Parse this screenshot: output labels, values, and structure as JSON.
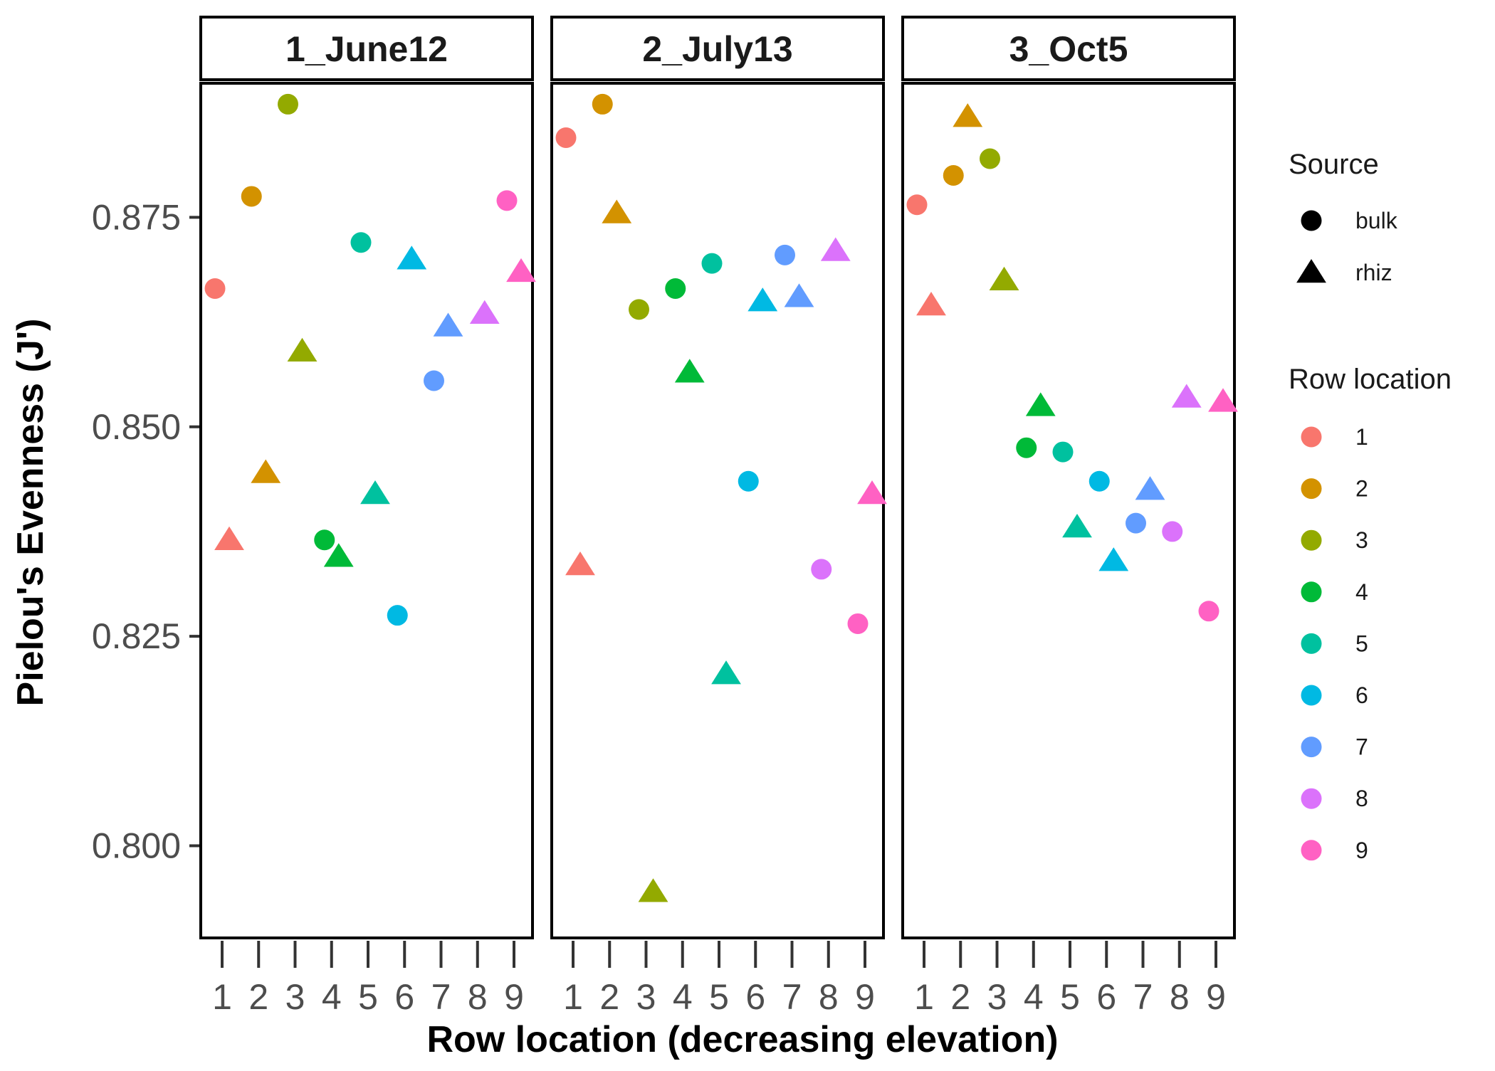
{
  "chart_data": {
    "type": "scatter",
    "xlabel": "Row location (decreasing elevation)",
    "ylabel": "Pielou's Evenness (J')",
    "ylim": [
      0.789,
      0.891
    ],
    "yticks": [
      "0.800",
      "0.825",
      "0.850",
      "0.875"
    ],
    "x_categories": [
      "1",
      "2",
      "3",
      "4",
      "5",
      "6",
      "7",
      "8",
      "9"
    ],
    "facets": [
      {
        "label": "1_June12",
        "bulk": [
          0.8665,
          0.8775,
          0.8885,
          0.8365,
          0.872,
          0.8275,
          0.8555,
          null,
          0.877
        ],
        "rhiz": [
          0.8365,
          0.8445,
          0.859,
          0.8345,
          0.842,
          0.87,
          0.862,
          0.8635,
          0.8685
        ]
      },
      {
        "label": "2_July13",
        "bulk": [
          0.8845,
          0.8885,
          0.864,
          0.8665,
          0.8695,
          0.8435,
          0.8705,
          0.833,
          0.8265
        ],
        "rhiz": [
          0.8335,
          0.8755,
          0.7945,
          0.8565,
          0.8205,
          0.865,
          0.8655,
          0.871,
          0.842
        ]
      },
      {
        "label": "3_Oct5",
        "bulk": [
          0.8765,
          0.88,
          0.882,
          0.8475,
          0.847,
          0.8435,
          0.8385,
          0.8375,
          0.828
        ],
        "rhiz": [
          0.8645,
          0.887,
          0.8675,
          0.8525,
          0.838,
          0.834,
          0.8425,
          0.8535,
          0.853
        ]
      }
    ],
    "legend": {
      "placement": "right",
      "source_title": "Source",
      "source_items": [
        "bulk",
        "rhiz"
      ],
      "row_title": "Row location",
      "row_items": [
        "1",
        "2",
        "3",
        "4",
        "5",
        "6",
        "7",
        "8",
        "9"
      ]
    },
    "colors": [
      "#F8766D",
      "#D39200",
      "#93AA00",
      "#00BA38",
      "#00C19F",
      "#00B9E3",
      "#619CFF",
      "#DB72FB",
      "#FF61C3"
    ],
    "grid": false
  }
}
